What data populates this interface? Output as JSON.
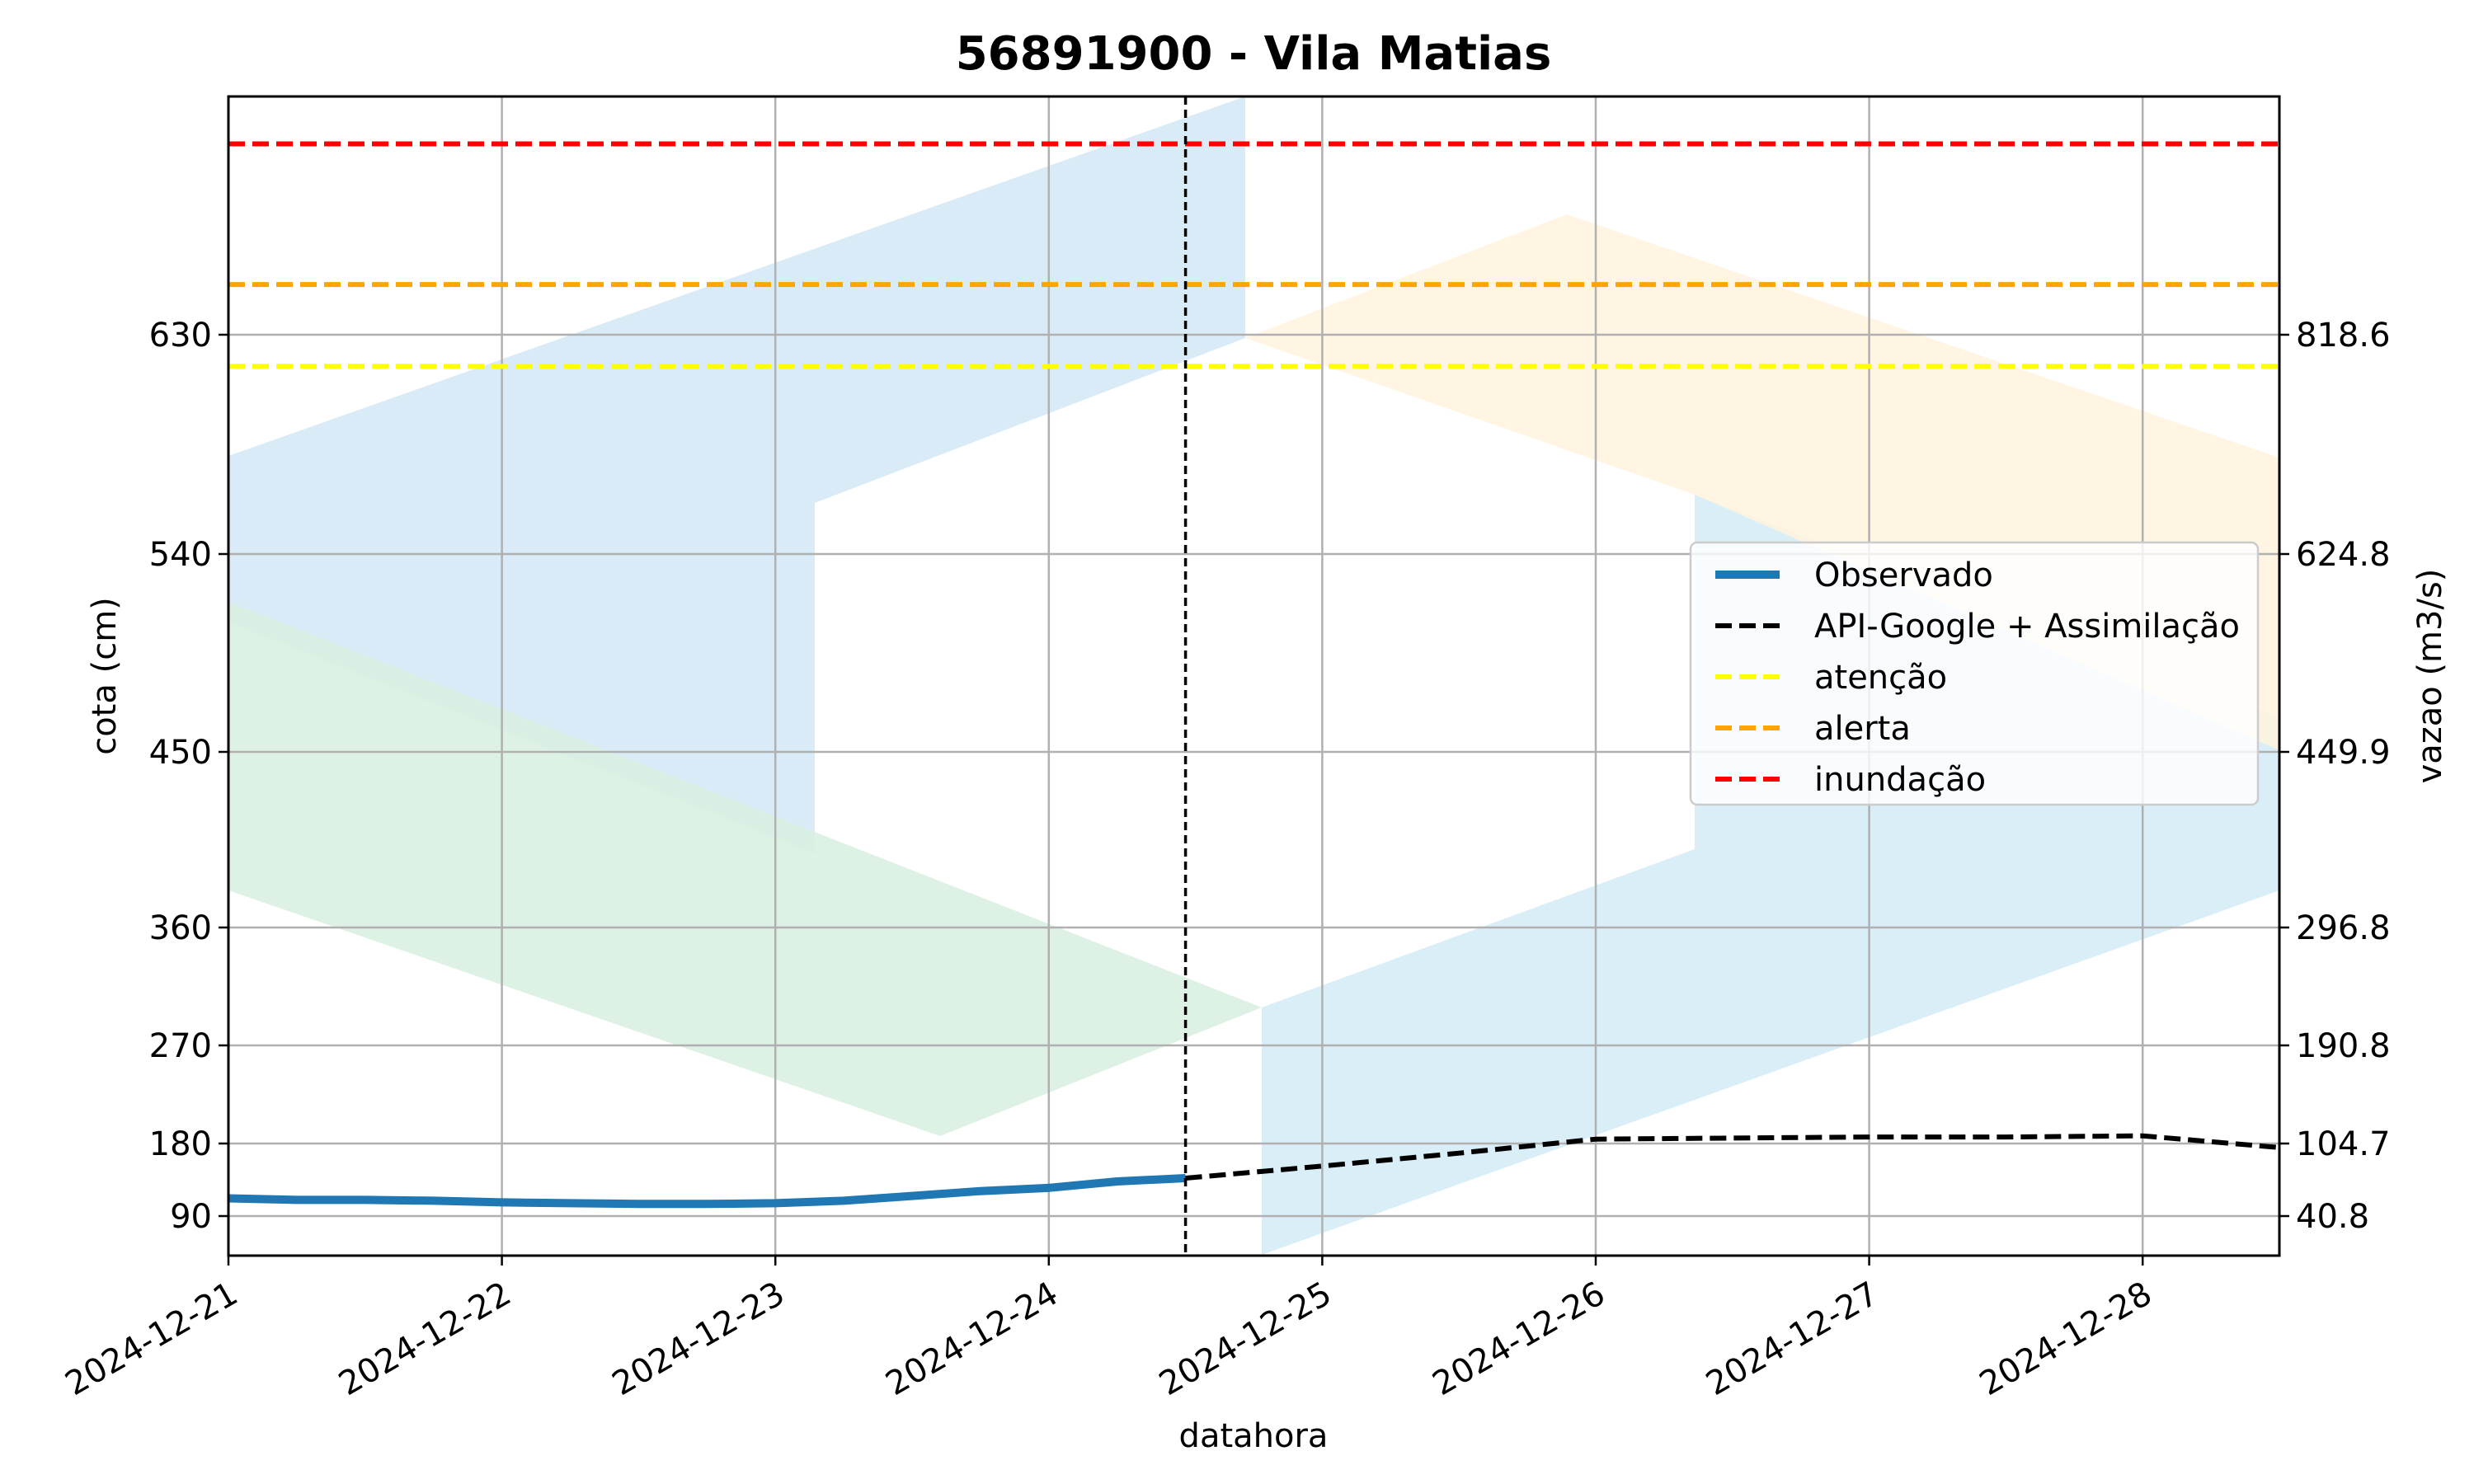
{
  "chart_data": {
    "type": "line",
    "title": "56891900 - Vila Matias",
    "xlabel": "datahora",
    "ylabel": "cota (cm)",
    "ylabel_right": "vazao (m3/s)",
    "x_ticks": [
      "2024-12-21",
      "2024-12-22",
      "2024-12-23",
      "2024-12-24",
      "2024-12-25",
      "2024-12-26",
      "2024-12-27",
      "2024-12-28"
    ],
    "xlim": [
      "2024-12-21 00:00",
      "2024-12-28 12:00"
    ],
    "ylim": [
      40,
      796
    ],
    "y_ticks": [
      90,
      180,
      270,
      360,
      450,
      540,
      630
    ],
    "y_ticks_right": [
      "40.8",
      "104.7",
      "190.8",
      "296.8",
      "449.9",
      "624.8",
      "818.6"
    ],
    "grid": true,
    "legend_position": "center-right",
    "forecast_start": "2024-12-24 12:00",
    "series": [
      {
        "name": "Observado",
        "color": "#1f77b4",
        "style": "solid",
        "x": [
          "2024-12-21 00:00",
          "2024-12-21 06:00",
          "2024-12-21 12:00",
          "2024-12-21 18:00",
          "2024-12-22 00:00",
          "2024-12-22 06:00",
          "2024-12-22 12:00",
          "2024-12-22 18:00",
          "2024-12-23 00:00",
          "2024-12-23 06:00",
          "2024-12-23 12:00",
          "2024-12-23 18:00",
          "2024-12-24 00:00",
          "2024-12-24 06:00",
          "2024-12-24 12:00"
        ],
        "y": [
          112,
          110,
          110,
          109,
          107,
          106,
          105,
          105,
          106,
          109,
          115,
          121,
          125,
          133,
          137
        ]
      },
      {
        "name": "API-Google + Assimilação",
        "color": "#000000",
        "style": "dashed",
        "x": [
          "2024-12-24 12:00",
          "2024-12-25 00:00",
          "2024-12-25 12:00",
          "2024-12-26 00:00",
          "2024-12-26 12:00",
          "2024-12-27 00:00",
          "2024-12-27 12:00",
          "2024-12-28 00:00",
          "2024-12-28 12:00"
        ],
        "y": [
          137,
          152,
          168,
          184,
          185,
          186,
          186,
          187,
          175
        ]
      },
      {
        "name": "atenção",
        "color": "#ffff00",
        "style": "dashed",
        "y_const": 617
      },
      {
        "name": "alerta",
        "color": "#ffa500",
        "style": "dashed",
        "y_const": 665
      },
      {
        "name": "inundação",
        "color": "#ff0000",
        "style": "dashed",
        "y_const": 763
      }
    ]
  }
}
